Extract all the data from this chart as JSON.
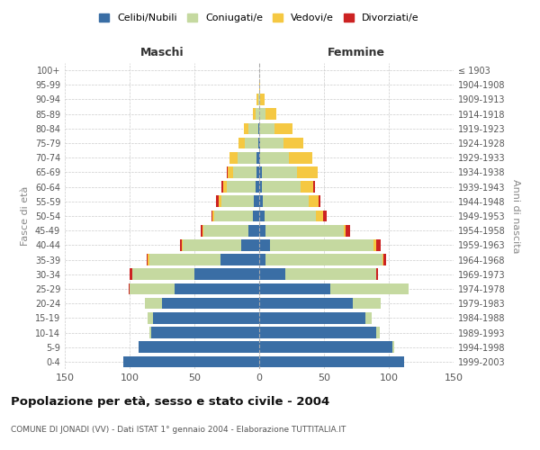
{
  "age_groups": [
    "0-4",
    "5-9",
    "10-14",
    "15-19",
    "20-24",
    "25-29",
    "30-34",
    "35-39",
    "40-44",
    "45-49",
    "50-54",
    "55-59",
    "60-64",
    "65-69",
    "70-74",
    "75-79",
    "80-84",
    "85-89",
    "90-94",
    "95-99",
    "100+"
  ],
  "birth_years": [
    "1999-2003",
    "1994-1998",
    "1989-1993",
    "1984-1988",
    "1979-1983",
    "1974-1978",
    "1969-1973",
    "1964-1968",
    "1959-1963",
    "1954-1958",
    "1949-1953",
    "1944-1948",
    "1939-1943",
    "1934-1938",
    "1929-1933",
    "1924-1928",
    "1919-1923",
    "1914-1918",
    "1909-1913",
    "1904-1908",
    "≤ 1903"
  ],
  "maschi": {
    "celibi": [
      105,
      93,
      83,
      82,
      75,
      65,
      50,
      30,
      14,
      8,
      5,
      4,
      3,
      2,
      2,
      1,
      1,
      0,
      0,
      0,
      0
    ],
    "coniugati": [
      0,
      0,
      2,
      4,
      13,
      35,
      48,
      55,
      45,
      35,
      30,
      25,
      22,
      18,
      15,
      10,
      7,
      3,
      1,
      0,
      0
    ],
    "vedovi": [
      0,
      0,
      0,
      0,
      0,
      0,
      0,
      1,
      1,
      1,
      1,
      2,
      3,
      4,
      6,
      5,
      4,
      2,
      1,
      0,
      0
    ],
    "divorziati": [
      0,
      0,
      0,
      0,
      0,
      1,
      2,
      1,
      1,
      1,
      1,
      2,
      1,
      1,
      0,
      0,
      0,
      0,
      0,
      0,
      0
    ]
  },
  "femmine": {
    "nubili": [
      112,
      103,
      90,
      82,
      72,
      55,
      20,
      5,
      8,
      5,
      4,
      3,
      2,
      2,
      1,
      1,
      0,
      0,
      0,
      0,
      0
    ],
    "coniugate": [
      0,
      1,
      3,
      5,
      22,
      60,
      70,
      90,
      80,
      60,
      40,
      35,
      30,
      27,
      22,
      18,
      12,
      5,
      1,
      0,
      0
    ],
    "vedove": [
      0,
      0,
      0,
      0,
      0,
      0,
      0,
      1,
      2,
      2,
      5,
      8,
      10,
      16,
      18,
      15,
      14,
      8,
      3,
      1,
      0
    ],
    "divorziate": [
      0,
      0,
      0,
      0,
      0,
      0,
      2,
      2,
      4,
      3,
      3,
      1,
      1,
      0,
      0,
      0,
      0,
      0,
      0,
      0,
      0
    ]
  },
  "colors": {
    "celibi_nubili": "#3a6ea5",
    "coniugati": "#c5d9a0",
    "vedovi": "#f5c842",
    "divorziati": "#cc2222"
  },
  "title": "Popolazione per età, sesso e stato civile - 2004",
  "subtitle": "COMUNE DI JONADI (VV) - Dati ISTAT 1° gennaio 2004 - Elaborazione TUTTITALIA.IT",
  "ylabel_left": "Fasce di età",
  "ylabel_right": "Anni di nascita",
  "xlabel_maschi": "Maschi",
  "xlabel_femmine": "Femmine",
  "xlim": 150,
  "legend_labels": [
    "Celibi/Nubili",
    "Coniugati/e",
    "Vedovi/e",
    "Divorziati/e"
  ],
  "bg_color": "#ffffff",
  "grid_color": "#cccccc"
}
